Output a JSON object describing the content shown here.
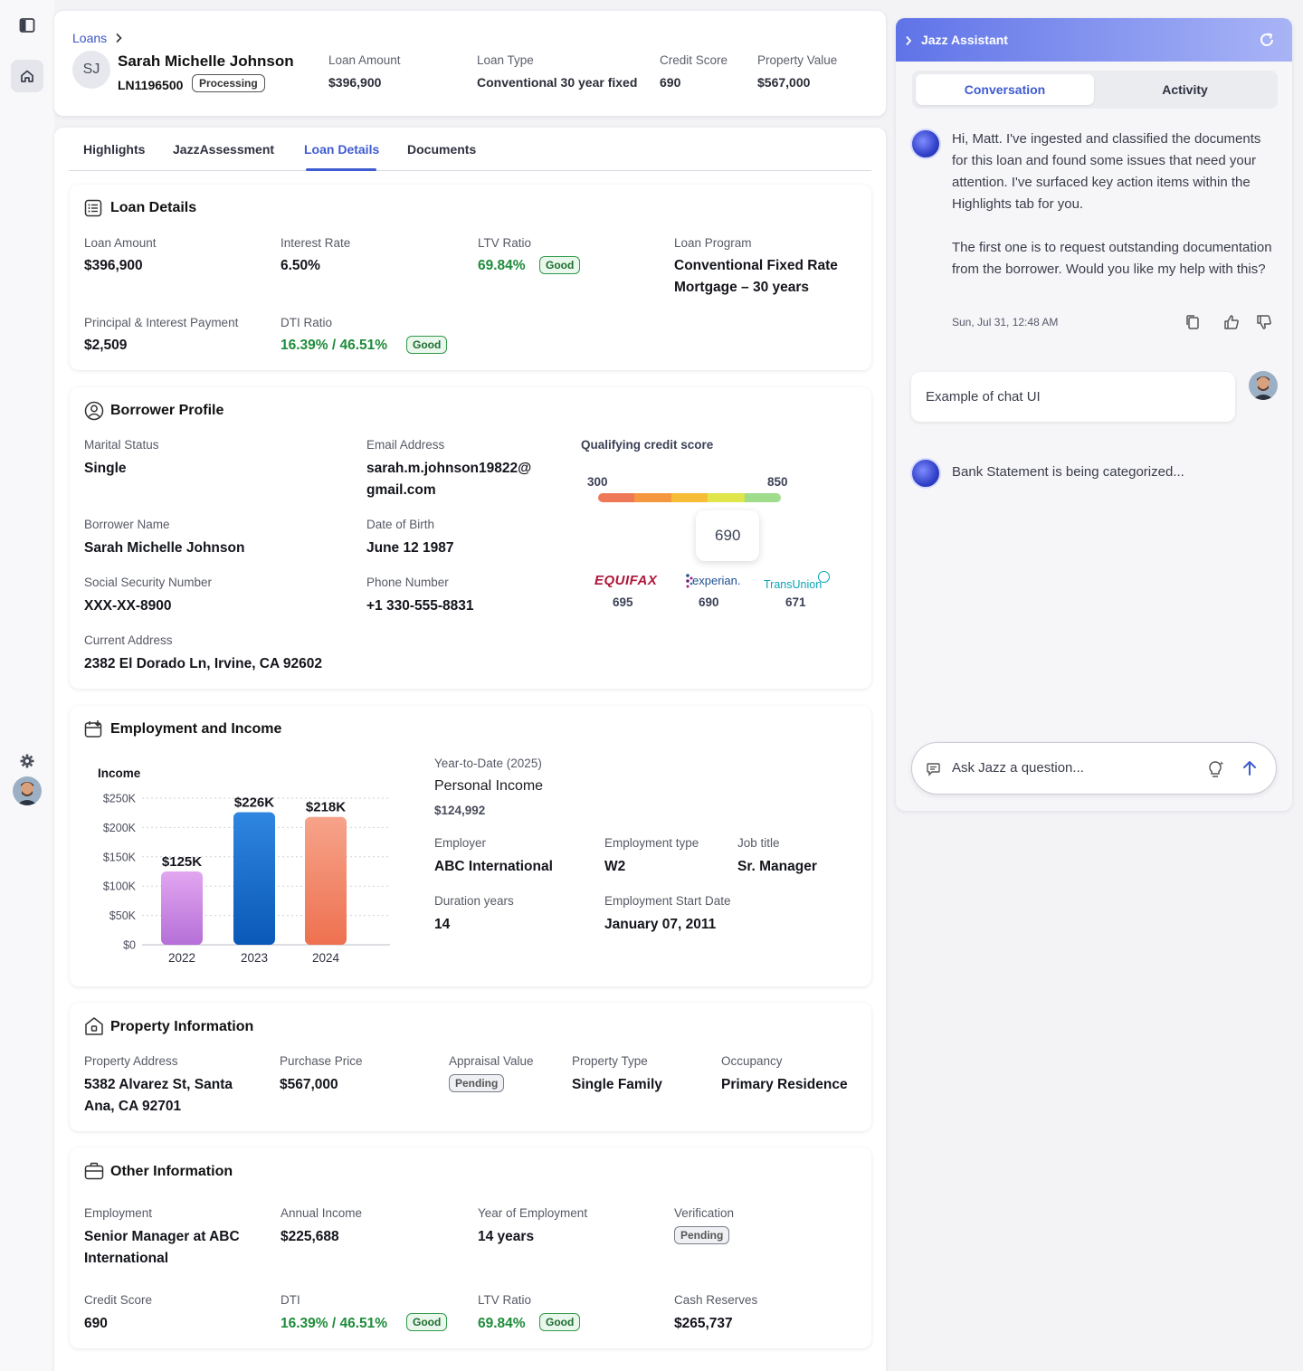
{
  "header": {
    "breadcrumb": "Loans",
    "initials": "SJ",
    "name": "Sarah Michelle Johnson",
    "loan_id": "LN1196500",
    "status": "Processing",
    "stats": [
      {
        "label": "Loan Amount",
        "value": "$396,900"
      },
      {
        "label": "Loan Type",
        "value": "Conventional 30 year fixed"
      },
      {
        "label": "Credit Score",
        "value": "690"
      },
      {
        "label": "Property Value",
        "value": "$567,000"
      }
    ]
  },
  "tabs": [
    {
      "label": "Highlights"
    },
    {
      "label": "JazzAssessment"
    },
    {
      "label": "Loan Details"
    },
    {
      "label": "Documents"
    }
  ],
  "loan_details": {
    "title": "Loan Details",
    "loan_amount_label": "Loan Amount",
    "loan_amount": "$396,900",
    "interest_rate_label": "Interest Rate",
    "interest_rate": "6.50%",
    "ltv_label": "LTV Ratio",
    "ltv": "69.84%",
    "ltv_badge": "Good",
    "program_label": "Loan Program",
    "program_line1": "Conventional Fixed Rate",
    "program_line2": "Mortgage – 30 years",
    "pi_label": "Principal & Interest Payment",
    "pi": "$2,509",
    "dti_label": "DTI Ratio",
    "dti": "16.39% / 46.51%",
    "dti_badge": "Good"
  },
  "borrower": {
    "title": "Borrower Profile",
    "marital_label": "Marital Status",
    "marital": "Single",
    "email_label": "Email Address",
    "email_line1": "sarah.m.johnson19822@",
    "email_line2": "gmail.com",
    "name_label": "Borrower Name",
    "name": "Sarah Michelle Johnson",
    "dob_label": "Date of Birth",
    "dob": "June 12 1987",
    "ssn_label": "Social Security Number",
    "ssn": "XXX-XX-8900",
    "phone_label": "Phone Number",
    "phone": "+1 330-555-8831",
    "address_label": "Current Address",
    "address": "2382 El Dorado Ln, Irvine, CA 92602",
    "credit": {
      "title": "Qualifying credit score",
      "min": "300",
      "max": "850",
      "score": "690",
      "score_value": 690,
      "bureaus": [
        {
          "name": "EQUIFAX",
          "score": "695"
        },
        {
          "name": "experian.",
          "score": "690"
        },
        {
          "name": "TransUnion",
          "score": "671"
        }
      ]
    }
  },
  "employment": {
    "title": "Employment and Income",
    "ytd_label": "Year-to-Date (2025)",
    "personal_income_label": "Personal Income",
    "personal_income": "$124,992",
    "employer_label": "Employer",
    "employer": "ABC International",
    "type_label": "Employment type",
    "type": "W2",
    "job_label": "Job title",
    "job": "Sr. Manager",
    "duration_label": "Duration years",
    "duration": "14",
    "start_label": "Employment Start Date",
    "start": "January 07, 2011"
  },
  "chart_data": {
    "type": "bar",
    "title": "Income",
    "categories": [
      "2022",
      "2023",
      "2024"
    ],
    "values": [
      125,
      226,
      218
    ],
    "data_labels": [
      "$125K",
      "$226K",
      "$218K"
    ],
    "y_ticks": [
      "$0",
      "$50K",
      "$100K",
      "$150K",
      "$200K",
      "$250K"
    ],
    "ylim": [
      0,
      250
    ],
    "grid": true,
    "colors": [
      [
        "#e2a6f0",
        "#b56fd7"
      ],
      [
        "#2f86e0",
        "#0a58b8"
      ],
      [
        "#f6a38a",
        "#ee7150"
      ]
    ]
  },
  "property": {
    "title": "Property Information",
    "address_label": "Property Address",
    "address_line1": "5382 Alvarez St, Santa",
    "address_line2": "Ana, CA 92701",
    "price_label": "Purchase Price",
    "price": "$567,000",
    "appraisal_label": "Appraisal Value",
    "appraisal": "Pending",
    "type_label": "Property Type",
    "type": "Single Family",
    "occupancy_label": "Occupancy",
    "occupancy": "Primary Residence"
  },
  "other": {
    "title": "Other Information",
    "employment_label": "Employment",
    "employment_line1": "Senior Manager at ABC",
    "employment_line2": "International",
    "income_label": "Annual Income",
    "income": "$225,688",
    "years_label": "Year of Employment",
    "years": "14 years",
    "verification_label": "Verification",
    "verification": "Pending",
    "credit_label": "Credit Score",
    "credit": "690",
    "dti_label": "DTI",
    "dti": "16.39% / 46.51%",
    "dti_badge": "Good",
    "ltv_label": "LTV Ratio",
    "ltv": "69.84%",
    "ltv_badge": "Good",
    "reserves_label": "Cash Reserves",
    "reserves": "$265,737"
  },
  "assistant": {
    "title": "Jazz Assistant",
    "tab_conversation": "Conversation",
    "tab_activity": "Activity",
    "msg1_p1": "Hi, Matt.  I've ingested and classified the documents for this loan and found some issues that need your attention.  I've surfaced key action items within the Highlights tab for you.",
    "msg1_p2": "The first one is to request outstanding documentation from the borrower.  Would you like my help with this?",
    "timestamp": "Sun, Jul 31, 12:48 AM",
    "user_msg": "Example of chat UI",
    "status_msg": "Bank Statement is being categorized...",
    "input_placeholder": "Ask Jazz a question..."
  },
  "colors": {
    "accent": "#3f5bd1",
    "good": "#1e8c3a"
  }
}
